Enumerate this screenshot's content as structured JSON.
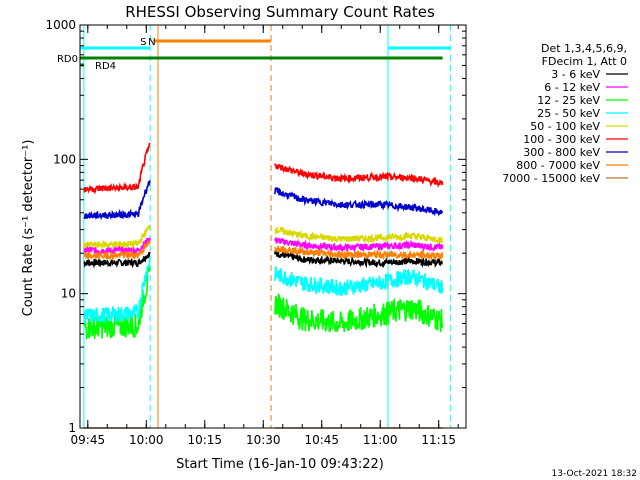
{
  "chart_data": {
    "type": "line",
    "title": "RHESSI Observing Summary Count Rates",
    "xlabel": "Start Time (16-Jan-10 09:43:22)",
    "ylabel": "Count Rate (s⁻¹ detector⁻¹)",
    "yscale": "log",
    "ylim": [
      1,
      1000
    ],
    "xlim": [
      "09:43",
      "11:22"
    ],
    "x_ticks": [
      "09:45",
      "10:00",
      "10:15",
      "10:30",
      "10:45",
      "11:00",
      "11:15"
    ],
    "y_ticks": [
      "1",
      "10",
      "100",
      "1000"
    ],
    "legend_header": [
      "Det 1,3,4,5,6,9,",
      "FDecim 1, Att 0"
    ],
    "legend_position": "right",
    "timestamp": "13-Oct-2021 18:32",
    "series": [
      {
        "name": "3 - 6 keV",
        "color": "#000000",
        "seg1": {
          "t": [
            "09:44",
            "09:58",
            "10:01"
          ],
          "v": [
            17,
            17,
            20
          ]
        },
        "seg2": {
          "t": [
            "10:33",
            "10:40",
            "10:50",
            "11:00",
            "11:08",
            "11:16"
          ],
          "v": [
            20,
            18,
            17.5,
            17,
            17.5,
            17
          ]
        }
      },
      {
        "name": "6 - 12 keV",
        "color": "#ff00ff",
        "seg1": {
          "t": [
            "09:44",
            "09:58",
            "10:01"
          ],
          "v": [
            21,
            21,
            26
          ]
        },
        "seg2": {
          "t": [
            "10:33",
            "10:40",
            "10:50",
            "11:00",
            "11:08",
            "11:16"
          ],
          "v": [
            25,
            23,
            22,
            22.5,
            23,
            22
          ]
        }
      },
      {
        "name": "12 - 25 keV",
        "color": "#00ff00",
        "seg1": {
          "t": [
            "09:44",
            "09:58",
            "10:01"
          ],
          "v": [
            5.6,
            5.8,
            14
          ]
        },
        "seg2": {
          "t": [
            "10:33",
            "10:40",
            "10:50",
            "11:00",
            "11:08",
            "11:16"
          ],
          "v": [
            8.5,
            6.5,
            6.0,
            7.0,
            7.8,
            6.2
          ]
        }
      },
      {
        "name": "25 - 50 keV",
        "color": "#00ffff",
        "seg1": {
          "t": [
            "09:44",
            "09:58",
            "10:01"
          ],
          "v": [
            6.8,
            7.2,
            18
          ]
        },
        "seg2": {
          "t": [
            "10:33",
            "10:40",
            "10:50",
            "11:00",
            "11:08",
            "11:16"
          ],
          "v": [
            14,
            12,
            11,
            12,
            13.5,
            11
          ]
        }
      },
      {
        "name": "50 - 100 keV",
        "color": "#d9d900",
        "seg1": {
          "t": [
            "09:44",
            "09:58",
            "10:01"
          ],
          "v": [
            23,
            23.5,
            32
          ]
        },
        "seg2": {
          "t": [
            "10:33",
            "10:40",
            "10:50",
            "11:00",
            "11:08",
            "11:16"
          ],
          "v": [
            30,
            27,
            25.5,
            26,
            27,
            25
          ]
        }
      },
      {
        "name": "100 - 300 keV",
        "color": "#ff0000",
        "seg1": {
          "t": [
            "09:44",
            "09:58",
            "10:01"
          ],
          "v": [
            60,
            62,
            130
          ]
        },
        "seg2": {
          "t": [
            "10:33",
            "10:40",
            "10:50",
            "11:00",
            "11:08",
            "11:16"
          ],
          "v": [
            90,
            78,
            72,
            74,
            73,
            66
          ]
        }
      },
      {
        "name": "300 - 800 keV",
        "color": "#0000cc",
        "seg1": {
          "t": [
            "09:44",
            "09:58",
            "10:01"
          ],
          "v": [
            38,
            39,
            70
          ]
        },
        "seg2": {
          "t": [
            "10:33",
            "10:40",
            "10:50",
            "11:00",
            "11:08",
            "11:16"
          ],
          "v": [
            58,
            50,
            46,
            46,
            44,
            40
          ]
        }
      },
      {
        "name": "800 - 7000 keV",
        "color": "#ff7f00",
        "seg1": {
          "t": [
            "09:44",
            "09:58",
            "10:01"
          ],
          "v": [
            19,
            19.5,
            24
          ]
        },
        "seg2": {
          "t": [
            "10:33",
            "10:40",
            "10:50",
            "11:00",
            "11:08",
            "11:16"
          ],
          "v": [
            22,
            20.5,
            19.5,
            19.5,
            19.5,
            19
          ]
        }
      },
      {
        "name": "7000 - 15000 keV",
        "color": "#b87333",
        "seg1": {
          "t": [
            "09:44",
            "10:01"
          ],
          "v": [
            1,
            1
          ]
        },
        "seg2": {
          "t": [
            "10:33",
            "11:16"
          ],
          "v": [
            1,
            1
          ]
        }
      }
    ],
    "flag_bars": [
      {
        "label": "S",
        "color": "#ff7f00",
        "start": "10:02",
        "end": "10:32"
      },
      {
        "label": "N",
        "color": "#00ffff",
        "start": "10:02",
        "end": "10:02"
      },
      {
        "label": "",
        "color": "#00ffff",
        "start": "09:43",
        "end": "10:01"
      },
      {
        "label": "",
        "color": "#00ffff",
        "start": "11:02",
        "end": "11:18"
      },
      {
        "label": "RD0",
        "color": "#008000",
        "start": "09:43",
        "end": "11:16"
      },
      {
        "label": "RD4",
        "color": "#008000",
        "start": "09:43",
        "end": "09:44"
      }
    ],
    "vertical_markers": [
      {
        "time": "09:44",
        "color": "#00ffff",
        "style": "solid"
      },
      {
        "time": "10:01",
        "color": "#00ffff",
        "style": "dashed"
      },
      {
        "time": "10:03",
        "color": "#ff7f00",
        "style": "solid"
      },
      {
        "time": "10:32",
        "color": "#ff7f00",
        "style": "dashed"
      },
      {
        "time": "11:02",
        "color": "#00ffff",
        "style": "solid"
      },
      {
        "time": "11:18",
        "color": "#00ffff",
        "style": "dashed"
      }
    ]
  }
}
